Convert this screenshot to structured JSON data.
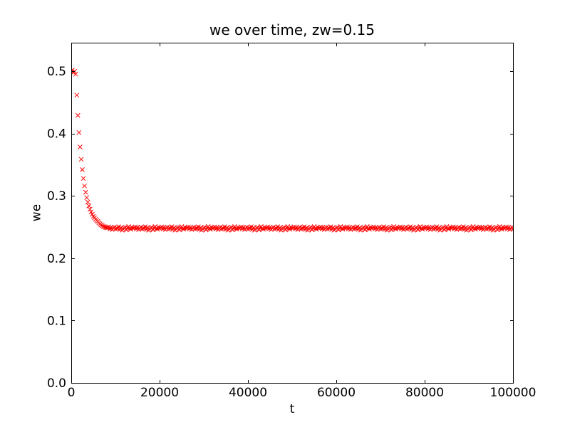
{
  "chart_data": {
    "type": "scatter",
    "title": "we over time, zw=0.15",
    "xlabel": "t",
    "ylabel": "we",
    "xlim": [
      0,
      100000
    ],
    "ylim": [
      0,
      0.5457
    ],
    "xticks": [
      0,
      20000,
      40000,
      60000,
      80000,
      100000
    ],
    "xtick_labels": [
      "0",
      "20000",
      "40000",
      "60000",
      "80000",
      "100000"
    ],
    "yticks": [
      0,
      0.1,
      0.2,
      0.3,
      0.4,
      0.5
    ],
    "ytick_labels": [
      "0.0",
      "0.1",
      "0.2",
      "0.3",
      "0.4",
      "0.5"
    ],
    "grid": false,
    "legend": "none",
    "colors": {
      "marker": "#ff0000",
      "axes": "#000000",
      "background": "#ffffff"
    },
    "series": [
      {
        "name": "we",
        "marker": "x",
        "color": "#ff0000",
        "x_start": 0,
        "x_step": 250,
        "y": [
          0.5,
          0.5018,
          0.4978,
          0.4998,
          0.4952,
          0.4616,
          0.4291,
          0.4016,
          0.3784,
          0.3587,
          0.342,
          0.3279,
          0.3159,
          0.3058,
          0.2972,
          0.29,
          0.2838,
          0.2786,
          0.2742,
          0.2705,
          0.2674,
          0.2647,
          0.2624,
          0.2605,
          0.2589,
          0.257,
          0.2552,
          0.2536,
          0.2523,
          0.2512,
          0.2503,
          0.2496,
          0.249,
          0.2487,
          0.2502,
          0.2471,
          0.2493,
          0.246,
          0.248,
          0.2499,
          0.2468,
          0.2488,
          0.2475,
          0.2505,
          0.2462,
          0.2491,
          0.245,
          0.247,
          0.2483,
          0.2497,
          0.2455,
          0.2489,
          0.2507,
          0.2477,
          0.2465,
          0.2495,
          0.2481,
          0.2487,
          0.2502,
          0.2471,
          0.2493,
          0.246,
          0.248,
          0.2499,
          0.2468,
          0.2488,
          0.2475,
          0.2505,
          0.2462,
          0.2491,
          0.245,
          0.247,
          0.2483,
          0.2497,
          0.2455,
          0.2489,
          0.2507,
          0.2477,
          0.2465,
          0.2495,
          0.2481,
          0.2487,
          0.2502,
          0.2471,
          0.2493,
          0.246,
          0.248,
          0.2499,
          0.2468,
          0.2488,
          0.2475,
          0.2505,
          0.2462,
          0.2491,
          0.245,
          0.247,
          0.2483,
          0.2497,
          0.2455,
          0.2489,
          0.2507,
          0.2477,
          0.2465,
          0.2495,
          0.2481,
          0.2487,
          0.2502,
          0.2471,
          0.2493,
          0.246,
          0.248,
          0.2499,
          0.2468,
          0.2488,
          0.2475,
          0.2505,
          0.2462,
          0.2491,
          0.245,
          0.247,
          0.2483,
          0.2497,
          0.2455,
          0.2489,
          0.2507,
          0.2477,
          0.2465,
          0.2495,
          0.2481,
          0.2487,
          0.2502,
          0.2471,
          0.2493,
          0.246,
          0.248,
          0.2499,
          0.2468,
          0.2488,
          0.2475,
          0.2505,
          0.2462,
          0.2491,
          0.245,
          0.247,
          0.2483,
          0.2497,
          0.2455,
          0.2489,
          0.2507,
          0.2477,
          0.2465,
          0.2495,
          0.2481,
          0.2487,
          0.2502,
          0.2471,
          0.2493,
          0.246,
          0.248,
          0.2499,
          0.2468,
          0.2488,
          0.2475,
          0.2505,
          0.2462,
          0.2491,
          0.245,
          0.247,
          0.2483,
          0.2497,
          0.2455,
          0.2489,
          0.2507,
          0.2477,
          0.2465,
          0.2495,
          0.2481,
          0.2487,
          0.2502,
          0.2471,
          0.2493,
          0.246,
          0.248,
          0.2499,
          0.2468,
          0.2488,
          0.2475,
          0.2505,
          0.2462,
          0.2491,
          0.245,
          0.247,
          0.2483,
          0.2497,
          0.2455,
          0.2489,
          0.2507,
          0.2477,
          0.2465,
          0.2495,
          0.2481,
          0.2487,
          0.2502,
          0.2471,
          0.2493,
          0.246,
          0.248,
          0.2499,
          0.2468,
          0.2488,
          0.2475,
          0.2505,
          0.2462,
          0.2491,
          0.245,
          0.247,
          0.2483,
          0.2497,
          0.2455,
          0.2489,
          0.2507,
          0.2477,
          0.2465,
          0.2495,
          0.2481,
          0.2487,
          0.2502,
          0.2471,
          0.2493,
          0.246,
          0.248,
          0.2499,
          0.2468,
          0.2488,
          0.2475,
          0.2505,
          0.2462,
          0.2491,
          0.245,
          0.247,
          0.2483,
          0.2497,
          0.2455,
          0.2489,
          0.2507,
          0.2477,
          0.2465,
          0.2495,
          0.2481,
          0.2487,
          0.2502,
          0.2471,
          0.2493,
          0.246,
          0.248,
          0.2499,
          0.2468,
          0.2488,
          0.2475,
          0.2505,
          0.2462,
          0.2491,
          0.245,
          0.247,
          0.2483,
          0.2497,
          0.2455,
          0.2489,
          0.2507,
          0.2477,
          0.2465,
          0.2495,
          0.2481,
          0.2487,
          0.2502,
          0.2471,
          0.2493,
          0.246,
          0.248,
          0.2499,
          0.2468,
          0.2488,
          0.2475,
          0.2505,
          0.2462,
          0.2491,
          0.245,
          0.247,
          0.2483,
          0.2497,
          0.2455,
          0.2489,
          0.2507,
          0.2477,
          0.2465,
          0.2495,
          0.2481,
          0.2487,
          0.2502,
          0.2471,
          0.2493,
          0.246,
          0.248,
          0.2499,
          0.2468,
          0.2488,
          0.2475,
          0.2505,
          0.2462,
          0.2491,
          0.245,
          0.247,
          0.2483,
          0.2497,
          0.2455,
          0.2489,
          0.2507,
          0.2477,
          0.2465,
          0.2495,
          0.2481,
          0.2487,
          0.2502,
          0.2471,
          0.2493,
          0.246,
          0.248,
          0.2499,
          0.2468,
          0.2488,
          0.2475,
          0.2505,
          0.2462,
          0.2491,
          0.245,
          0.247,
          0.2483,
          0.2497,
          0.2455,
          0.2489,
          0.2507,
          0.2477,
          0.2465,
          0.2495,
          0.2481,
          0.2487,
          0.2502,
          0.2471,
          0.2493,
          0.246,
          0.248,
          0.2499,
          0.2468,
          0.2488,
          0.2475,
          0.2505,
          0.2462,
          0.2491,
          0.245,
          0.247,
          0.2483,
          0.2497,
          0.2455,
          0.2489,
          0.2507,
          0.2477,
          0.2465,
          0.2495,
          0.2481,
          0.2487,
          0.2502,
          0.2471,
          0.2493,
          0.246,
          0.248,
          0.2499,
          0.2468,
          0.2488,
          0.2475,
          0.2505,
          0.2462,
          0.2491,
          0.245,
          0.247,
          0.2483,
          0.2497,
          0.2455,
          0.2489,
          0.2507,
          0.2477,
          0.2465,
          0.2495,
          0.2481,
          0.2487,
          0.2502,
          0.2471,
          0.2493,
          0.246,
          0.248,
          0.2499,
          0.2468
        ]
      }
    ]
  }
}
